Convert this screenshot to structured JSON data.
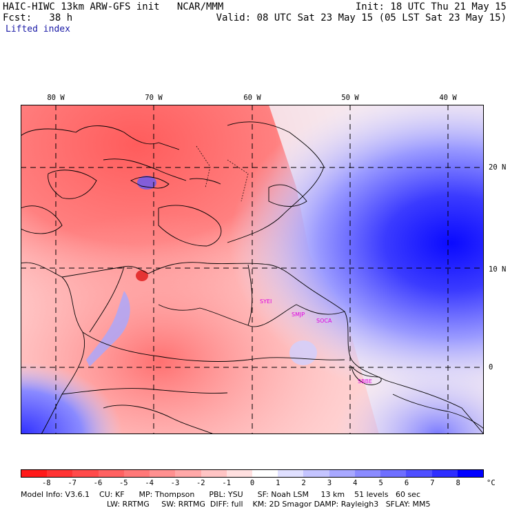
{
  "header": {
    "line1_left": "HAIC-HIWC 13km ARW-GFS init   NCAR/MMM",
    "line1_right": "Init: 18 UTC Thu 21 May 15",
    "line2_left": "Fcst:   38 h",
    "line2_right": "Valid: 08 UTC Sat 23 May 15 (05 LST Sat 23 May 15)",
    "field": "Lifted index"
  },
  "map": {
    "lon_labels": [
      "80 W",
      "70 W",
      "60 W",
      "50 W",
      "40 W"
    ],
    "lat_labels": [
      "20 N",
      "10 N",
      "0"
    ],
    "cities": [
      "SYEI",
      "SMJP",
      "SOCA",
      "SBBE"
    ]
  },
  "colorbar": {
    "labels": [
      "-8",
      "-7",
      "-6",
      "-5",
      "-4",
      "-3",
      "-2",
      "-1",
      "0",
      "1",
      "2",
      "3",
      "4",
      "5",
      "6",
      "7",
      "8"
    ],
    "unit": "°C",
    "colors": [
      "#ff1a1a",
      "#ff3333",
      "#ff4a4a",
      "#ff6161",
      "#ff7878",
      "#ff9090",
      "#ffa8a8",
      "#ffc4c4",
      "#ffe0e0",
      "#ffffff",
      "#e0e0ff",
      "#c4c4ff",
      "#a8a8ff",
      "#8b8bff",
      "#6f6fff",
      "#4f4fff",
      "#2e2eff",
      "#0000ff"
    ]
  },
  "footer": {
    "line1": "Model Info: V3.6.1    CU: KF      MP: Thompson      PBL: YSU      SF: Noah LSM     13 km    51 levels   60 sec",
    "line2": "LW: RRTMG     SW: RRTMG  DIFF: full    KM: 2D Smagor DAMP: Rayleigh3   SFLAY: MM5"
  }
}
